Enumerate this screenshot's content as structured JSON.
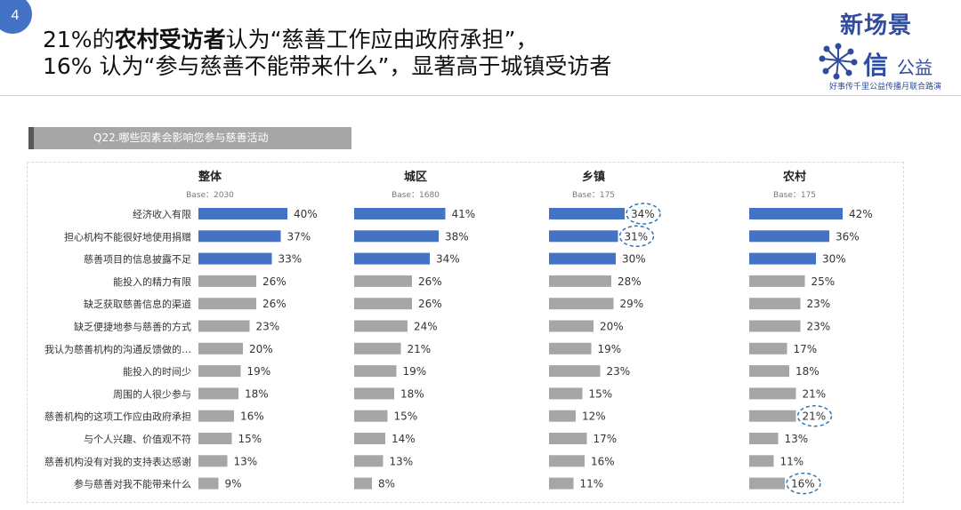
{
  "slide": {
    "number": "4",
    "headline_line1_parts": [
      "21%的",
      "农村受访者",
      "认为“慈善工作应由政府承担”，"
    ],
    "headline_line2": "16% 认为“参与慈善不能带来什么”，显著高于城镇受访者"
  },
  "logo": {
    "line1": "新场景",
    "line2": "信",
    "line3": "公益",
    "tagline": "好事传千里公益传播月联合路演"
  },
  "question": "Q22.哪些因素会影响您参与慈善活动",
  "colors": {
    "highlight": "#4472c4",
    "normal": "#a6a6a6",
    "circle": "#2e75b6"
  },
  "chart_data": {
    "type": "bar",
    "orientation": "horizontal",
    "categories": [
      "经济收入有限",
      "担心机构不能很好地使用捐赠",
      "慈善项目的信息披露不足",
      "能投入的精力有限",
      "缺乏获取慈善信息的渠道",
      "缺乏便捷地参与慈善的方式",
      "我认为慈善机构的沟通反馈做的…",
      "能投入的时间少",
      "周围的人很少参与",
      "慈善机构的这项工作应由政府承担",
      "与个人兴趣、价值观不符",
      "慈善机构没有对我的支持表达感谢",
      "参与慈善对我不能带来什么"
    ],
    "highlighted_rows": [
      0,
      1,
      2
    ],
    "series": [
      {
        "name": "整体",
        "base": "Base：2030",
        "values": [
          40,
          37,
          33,
          26,
          26,
          23,
          20,
          19,
          18,
          16,
          15,
          13,
          9
        ],
        "circled": []
      },
      {
        "name": "城区",
        "base": "Base：1680",
        "values": [
          41,
          38,
          34,
          26,
          26,
          24,
          21,
          19,
          18,
          15,
          14,
          13,
          8
        ],
        "circled": []
      },
      {
        "name": "乡镇",
        "base": "Base：175",
        "values": [
          34,
          31,
          30,
          28,
          29,
          20,
          19,
          23,
          15,
          12,
          17,
          16,
          11
        ],
        "circled": [
          0,
          1
        ]
      },
      {
        "name": "农村",
        "base": "Base：175",
        "values": [
          42,
          36,
          30,
          25,
          23,
          23,
          17,
          18,
          21,
          21,
          13,
          11,
          16
        ],
        "circled": [
          9,
          12
        ]
      }
    ],
    "value_suffix": "%"
  }
}
